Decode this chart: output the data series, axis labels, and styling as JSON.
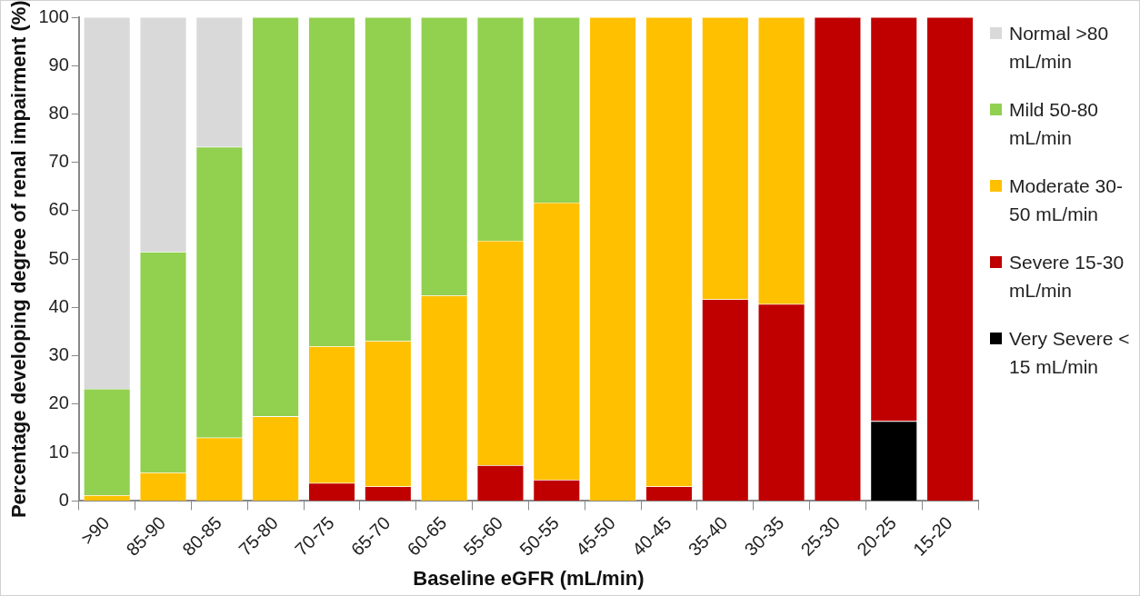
{
  "chart_data": {
    "type": "bar",
    "stacked": true,
    "xlabel": "Baseline eGFR (mL/min)",
    "ylabel": "Percentage developing degree of renal impairment (%)",
    "categories": [
      ">90",
      "85-90",
      "80-85",
      "75-80",
      "70-75",
      "65-70",
      "60-65",
      "55-60",
      "50-55",
      "45-50",
      "40-45",
      "35-40",
      "30-35",
      "25-30",
      "20-25",
      "15-20"
    ],
    "series": [
      {
        "name": "Very Severe < 15 mL/min",
        "color": "#000000",
        "values": [
          0,
          0,
          0,
          0,
          0,
          0,
          0,
          0,
          0,
          0,
          0,
          0,
          0,
          0,
          16.5,
          0
        ]
      },
      {
        "name": "Severe 15-30 mL/min",
        "color": "#c00000",
        "values": [
          0,
          0,
          0,
          0,
          3.7,
          3.0,
          0,
          7.4,
          4.4,
          0,
          3.0,
          41.7,
          40.7,
          100,
          83.5,
          100
        ]
      },
      {
        "name": "Moderate 30-50 mL/min",
        "color": "#ffc000",
        "values": [
          1.2,
          5.9,
          13.1,
          17.5,
          28.3,
          30.1,
          42.5,
          46.4,
          57.3,
          100,
          97.0,
          58.3,
          59.3,
          0,
          0,
          0
        ]
      },
      {
        "name": "Mild 50-80 mL/min",
        "color": "#92d050",
        "values": [
          22.0,
          45.6,
          60.1,
          82.5,
          68.0,
          66.9,
          57.5,
          46.2,
          38.3,
          0,
          0,
          0,
          0,
          0,
          0,
          0
        ]
      },
      {
        "name": "Normal >80 mL/min",
        "color": "#d9d9d9",
        "values": [
          76.8,
          48.5,
          26.8,
          0,
          0,
          0,
          0,
          0,
          0,
          0,
          0,
          0,
          0,
          0,
          0,
          0
        ]
      }
    ],
    "ylim": [
      0,
      100
    ],
    "yticks": [
      0,
      10,
      20,
      30,
      40,
      50,
      60,
      70,
      80,
      90,
      100
    ],
    "grid": false,
    "legend": "right"
  }
}
